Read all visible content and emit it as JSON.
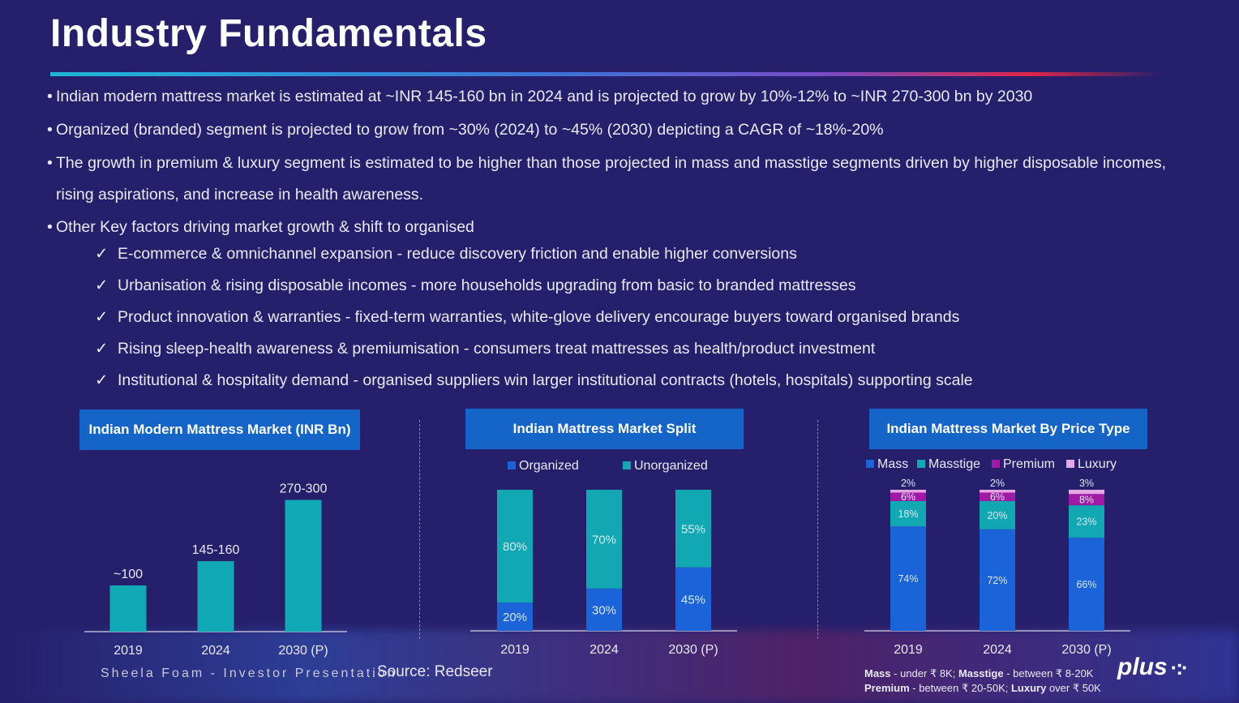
{
  "title": "Industry Fundamentals",
  "bullets": [
    "Indian modern mattress market is estimated at ~INR 145-160 bn in 2024 and is projected to grow by 10%-12% to ~INR 270-300 bn by 2030",
    "Organized (branded) segment is projected to grow from ~30% (2024) to ~45% (2030) depicting a CAGR of ~18%-20%",
    "The growth in premium & luxury segment is estimated to be higher than those projected in mass and masstige segments driven by higher disposable incomes, rising aspirations, and increase in health awareness.",
    "Other Key factors driving market growth & shift to organised"
  ],
  "checks": [
    "E-commerce & omnichannel expansion - reduce discovery friction and enable higher conversions",
    "Urbanisation & rising disposable incomes - more households upgrading from basic to branded mattresses",
    "Product innovation & warranties - fixed-term warranties, white-glove delivery encourage buyers toward organised brands",
    "Rising sleep-health awareness & premiumisation - consumers treat mattresses as health/product investment",
    "Institutional & hospitality demand - organised suppliers win larger institutional contracts (hotels, hospitals) supporting scale"
  ],
  "check_symbol": "✓",
  "bullet_symbol": "•",
  "chart_data": [
    {
      "type": "bar",
      "title": "Indian Modern Mattress Market (INR Bn)",
      "categories": [
        "2019",
        "2024",
        "2030 (P)"
      ],
      "values": [
        100,
        152.5,
        285
      ],
      "data_labels": [
        "~100",
        "145-160",
        "270-300"
      ],
      "ylim": [
        0,
        300
      ],
      "color": "#11a9b5"
    },
    {
      "type": "bar",
      "stacked": true,
      "title": "Indian Mattress Market Split",
      "categories": [
        "2019",
        "2024",
        "2030 (P)"
      ],
      "series": [
        {
          "name": "Organized",
          "values": [
            20,
            30,
            45
          ],
          "color": "#1a63d8"
        },
        {
          "name": "Unorganized",
          "values": [
            80,
            70,
            55
          ],
          "color": "#12a8b3"
        }
      ],
      "unit": "%",
      "legend": "top"
    },
    {
      "type": "bar",
      "stacked": true,
      "title": "Indian Mattress Market By Price Type",
      "categories": [
        "2019",
        "2024",
        "2030 (P)"
      ],
      "series": [
        {
          "name": "Mass",
          "values": [
            74,
            72,
            66
          ],
          "color": "#1a63d8"
        },
        {
          "name": "Masstige",
          "values": [
            18,
            20,
            23
          ],
          "color": "#12a8b3"
        },
        {
          "name": "Premium",
          "values": [
            6,
            6,
            8
          ],
          "color": "#a11aa6"
        },
        {
          "name": "Luxury",
          "values": [
            2,
            2,
            3
          ],
          "color": "#e4a8e6"
        }
      ],
      "unit": "%",
      "legend": "top"
    }
  ],
  "footer": {
    "presenter": "Sheela Foam - Investor Presentation",
    "source": "Source: Redseer",
    "price_note_line1_parts": [
      "Mass",
      " - under ₹ 8K; ",
      "Masstige",
      " - between ₹ 8-20K"
    ],
    "price_note_line2_parts": [
      "Premium",
      " - between ₹ 20-50K; ",
      "Luxury",
      " over ₹ 50K"
    ],
    "brand": "plus",
    "brand_symbol": "·:·"
  }
}
